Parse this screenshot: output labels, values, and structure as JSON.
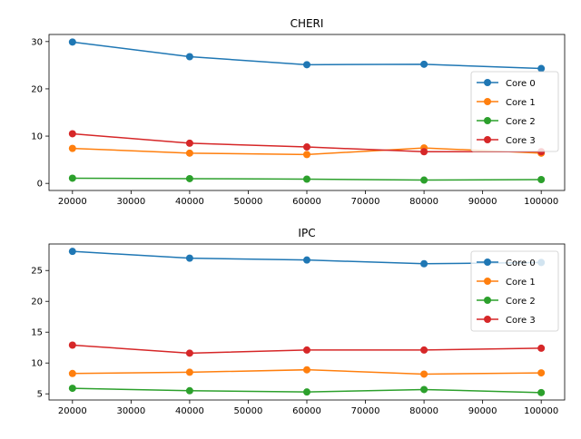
{
  "chart_data": [
    {
      "type": "line",
      "title": "CHERI",
      "xlabel": "",
      "ylabel": "",
      "x": [
        20000,
        40000,
        60000,
        80000,
        100000
      ],
      "xlim": [
        16000,
        104000
      ],
      "ylim": [
        -1.5,
        31.5
      ],
      "xticks": [
        20000,
        30000,
        40000,
        50000,
        60000,
        70000,
        80000,
        90000,
        100000
      ],
      "yticks": [
        0,
        10,
        20,
        30
      ],
      "grid": false,
      "legend_position": "center-right",
      "series": [
        {
          "name": "Core 0",
          "color": "#1f77b4",
          "values": [
            29.9,
            26.8,
            25.1,
            25.2,
            24.3
          ]
        },
        {
          "name": "Core 1",
          "color": "#ff7f0e",
          "values": [
            7.4,
            6.4,
            6.1,
            7.5,
            6.4
          ]
        },
        {
          "name": "Core 2",
          "color": "#2ca02c",
          "values": [
            1.1,
            1.0,
            0.9,
            0.7,
            0.8
          ]
        },
        {
          "name": "Core 3",
          "color": "#d62728",
          "values": [
            10.5,
            8.5,
            7.7,
            6.7,
            6.7
          ]
        }
      ]
    },
    {
      "type": "line",
      "title": "IPC",
      "xlabel": "",
      "ylabel": "",
      "x": [
        20000,
        40000,
        60000,
        80000,
        100000
      ],
      "xlim": [
        16000,
        104000
      ],
      "ylim": [
        4.0,
        29.3
      ],
      "xticks": [
        20000,
        30000,
        40000,
        50000,
        60000,
        70000,
        80000,
        90000,
        100000
      ],
      "yticks": [
        5,
        10,
        15,
        20,
        25
      ],
      "grid": false,
      "legend_position": "top-right",
      "series": [
        {
          "name": "Core 0",
          "color": "#1f77b4",
          "values": [
            28.1,
            27.0,
            26.7,
            26.1,
            26.3
          ]
        },
        {
          "name": "Core 1",
          "color": "#ff7f0e",
          "values": [
            8.3,
            8.5,
            8.9,
            8.2,
            8.4
          ]
        },
        {
          "name": "Core 2",
          "color": "#2ca02c",
          "values": [
            5.9,
            5.5,
            5.3,
            5.7,
            5.2
          ]
        },
        {
          "name": "Core 3",
          "color": "#d62728",
          "values": [
            12.9,
            11.6,
            12.1,
            12.1,
            12.4
          ]
        }
      ]
    }
  ]
}
